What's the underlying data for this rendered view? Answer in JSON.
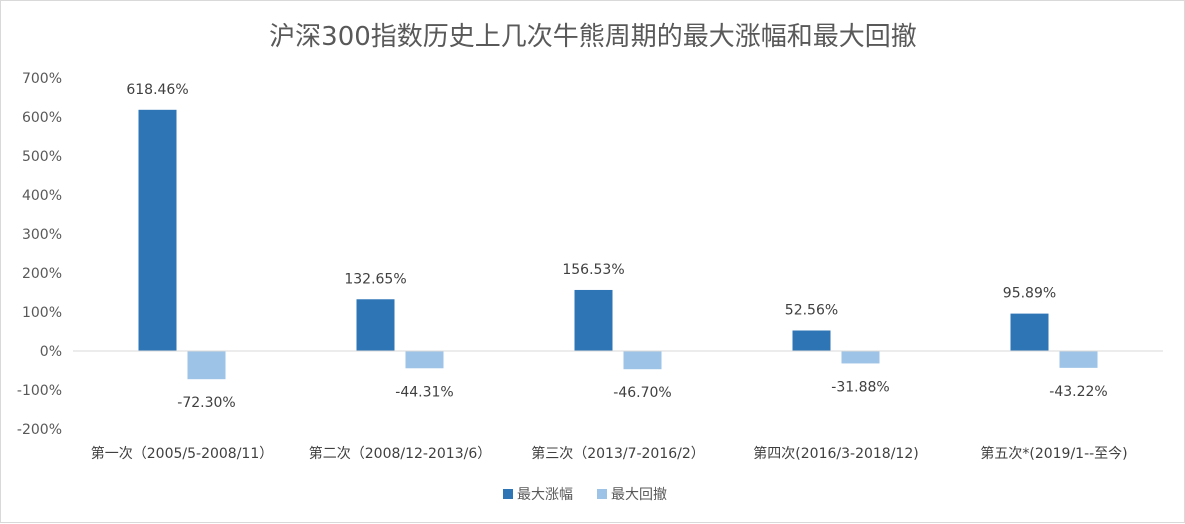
{
  "chart_data": {
    "type": "bar",
    "title": "沪深300指数历史上几次牛熊周期的最大涨幅和最大回撤",
    "categories": [
      "第一次（2005/5-2008/11）",
      "第二次（2008/12-2013/6）",
      "第三次（2013/7-2016/2）",
      "第四次(2016/3-2018/12)",
      "第五次*(2019/1--至今)"
    ],
    "series": [
      {
        "name": "最大涨幅",
        "color": "#2e75b6",
        "values": [
          618.46,
          132.65,
          156.53,
          52.56,
          95.89
        ],
        "labels": [
          "618.46%",
          "132.65%",
          "156.53%",
          "52.56%",
          "95.89%"
        ]
      },
      {
        "name": "最大回撤",
        "color": "#9dc3e6",
        "values": [
          -72.3,
          -44.31,
          -46.7,
          -31.88,
          -43.22
        ],
        "labels": [
          "-72.30%",
          "-44.31%",
          "-46.70%",
          "-31.88%",
          "-43.22%"
        ]
      }
    ],
    "ylim": [
      -200,
      700
    ],
    "yticks": [
      700,
      600,
      500,
      400,
      300,
      200,
      100,
      0,
      -100,
      -200
    ],
    "ytick_labels": [
      "700%",
      "600%",
      "500%",
      "400%",
      "300%",
      "200%",
      "100%",
      "0%",
      "-100%",
      "-200%"
    ],
    "xlabel": "",
    "ylabel": "",
    "gridlines": false,
    "legend_position": "bottom"
  }
}
